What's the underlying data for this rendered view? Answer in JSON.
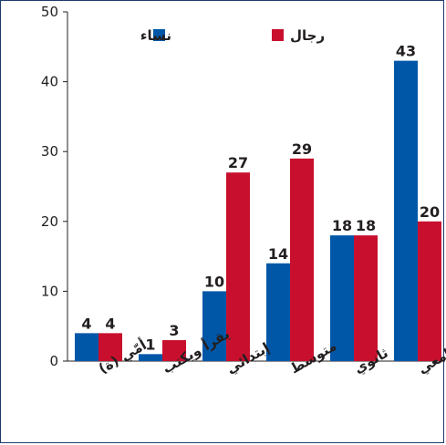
{
  "chart_data": {
    "type": "bar",
    "categories": [
      "أمّي (ة)",
      "يقرأ ويكتب",
      "إبتدائي",
      "متوسط",
      "ثانوي",
      "جامعي"
    ],
    "series": [
      {
        "name": "نساء",
        "values": [
          4,
          1,
          10,
          14,
          18,
          43
        ],
        "color": "#0057a8"
      },
      {
        "name": "رجال",
        "values": [
          4,
          3,
          27,
          29,
          18,
          20
        ],
        "color": "#c8102e"
      }
    ],
    "ylim": [
      0,
      50
    ],
    "yticks": [
      0,
      10,
      20,
      30,
      40,
      50
    ],
    "legend": "top-center",
    "grid": false,
    "title": "",
    "xlabel": "",
    "ylabel": ""
  }
}
